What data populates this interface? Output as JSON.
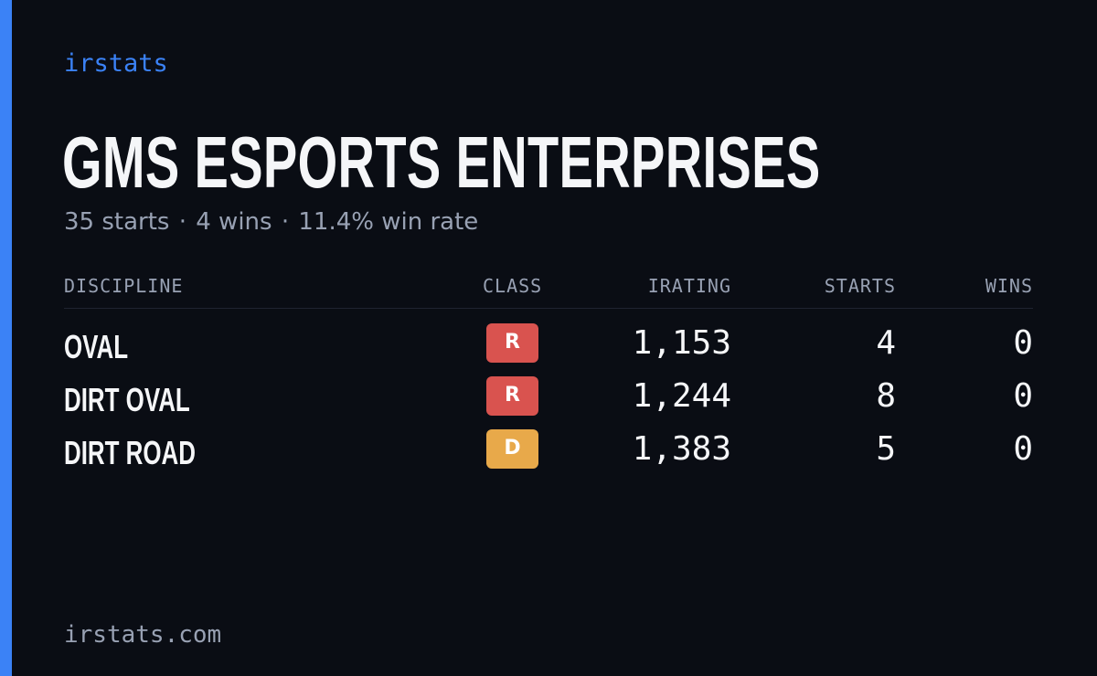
{
  "brand": "irstats",
  "title": "GMS ESPORTS ENTERPRISES",
  "summary": {
    "starts": "35 starts",
    "wins": "4 wins",
    "win_rate": "11.4% win rate",
    "separator": "·"
  },
  "table": {
    "headers": {
      "discipline": "DISCIPLINE",
      "class": "CLASS",
      "irating": "IRATING",
      "starts": "STARTS",
      "wins": "WINS"
    },
    "rows": [
      {
        "discipline": "OVAL",
        "class": "R",
        "class_color": "#d9534f",
        "irating": "1,153",
        "starts": "4",
        "wins": "0"
      },
      {
        "discipline": "DIRT OVAL",
        "class": "R",
        "class_color": "#d9534f",
        "irating": "1,244",
        "starts": "8",
        "wins": "0"
      },
      {
        "discipline": "DIRT ROAD",
        "class": "D",
        "class_color": "#e8a94a",
        "irating": "1,383",
        "starts": "5",
        "wins": "0"
      }
    ]
  },
  "footer": "irstats.com",
  "colors": {
    "accent": "#3b82f6",
    "background": "#0a0d14",
    "class_r": "#d9534f",
    "class_d": "#e8a94a"
  }
}
